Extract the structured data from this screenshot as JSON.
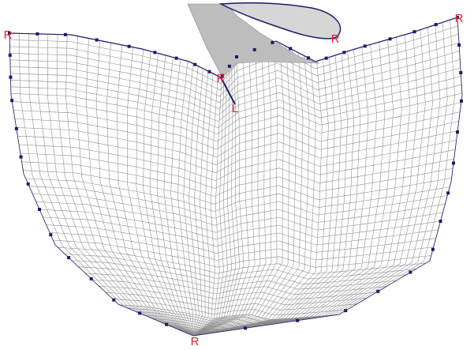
{
  "labels": [
    {
      "text": "R"
    },
    {
      "text": "R"
    },
    {
      "text": "R"
    },
    {
      "text": "R"
    },
    {
      "text": "R"
    },
    {
      "text": "L"
    }
  ]
}
